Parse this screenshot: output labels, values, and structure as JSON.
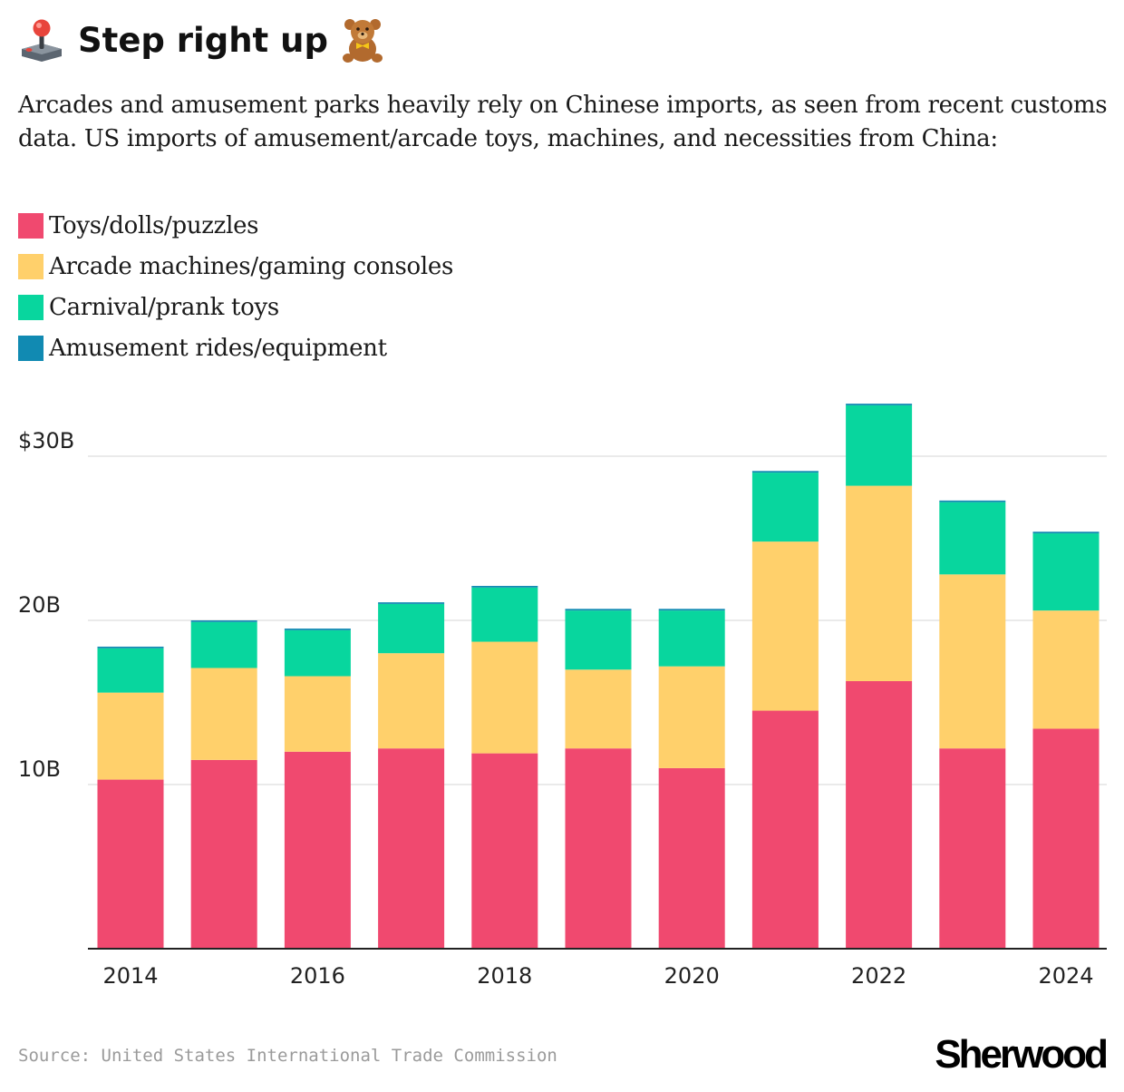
{
  "header": {
    "title": "Step right up",
    "icon_left": "joystick-icon",
    "icon_right": "teddy-bear-icon",
    "subtitle": "Arcades and amusement parks heavily rely on Chinese imports, as seen from recent customs data. US imports of amusement/arcade toys, machines, and necessities from China:"
  },
  "footer": {
    "source": "Source: United States International Trade Commission",
    "logo": "Sherwood"
  },
  "colors": {
    "toys": "#f0496f",
    "arcade": "#ffd06b",
    "carnival": "#08d69e",
    "rides": "#118ab2",
    "grid": "#e3e3e3",
    "axis": "#222222"
  },
  "chart_data": {
    "type": "bar",
    "stacked": true,
    "title": "Step right up",
    "xlabel": "",
    "ylabel": "",
    "ylim": [
      0,
      35
    ],
    "yticks": [
      10,
      20,
      30
    ],
    "ytick_labels": [
      "10B",
      "20B",
      "$30B"
    ],
    "categories": [
      "2014",
      "2015",
      "2016",
      "2017",
      "2018",
      "2019",
      "2020",
      "2021",
      "2022",
      "2023",
      "2024"
    ],
    "xtick_labels": [
      "2014",
      "",
      "2016",
      "",
      "2018",
      "",
      "2020",
      "",
      "2022",
      "",
      "2024"
    ],
    "legend_position": "top-left",
    "series": [
      {
        "name": "Toys/dolls/puzzles",
        "color": "#f0496f",
        "values": [
          10.3,
          11.5,
          12.0,
          12.2,
          11.9,
          12.2,
          11.0,
          14.5,
          16.3,
          12.2,
          13.4
        ]
      },
      {
        "name": "Arcade machines/gaming consoles",
        "color": "#ffd06b",
        "values": [
          5.3,
          5.6,
          4.6,
          5.8,
          6.8,
          4.8,
          6.2,
          10.3,
          11.9,
          10.6,
          7.2
        ]
      },
      {
        "name": "Carnival/prank toys",
        "color": "#08d69e",
        "values": [
          2.7,
          2.8,
          2.8,
          3.0,
          3.3,
          3.6,
          3.4,
          4.2,
          4.9,
          4.4,
          4.7
        ]
      },
      {
        "name": "Amusement rides/equipment",
        "color": "#118ab2",
        "values": [
          0.1,
          0.1,
          0.1,
          0.1,
          0.1,
          0.1,
          0.1,
          0.1,
          0.1,
          0.1,
          0.1
        ]
      }
    ]
  }
}
